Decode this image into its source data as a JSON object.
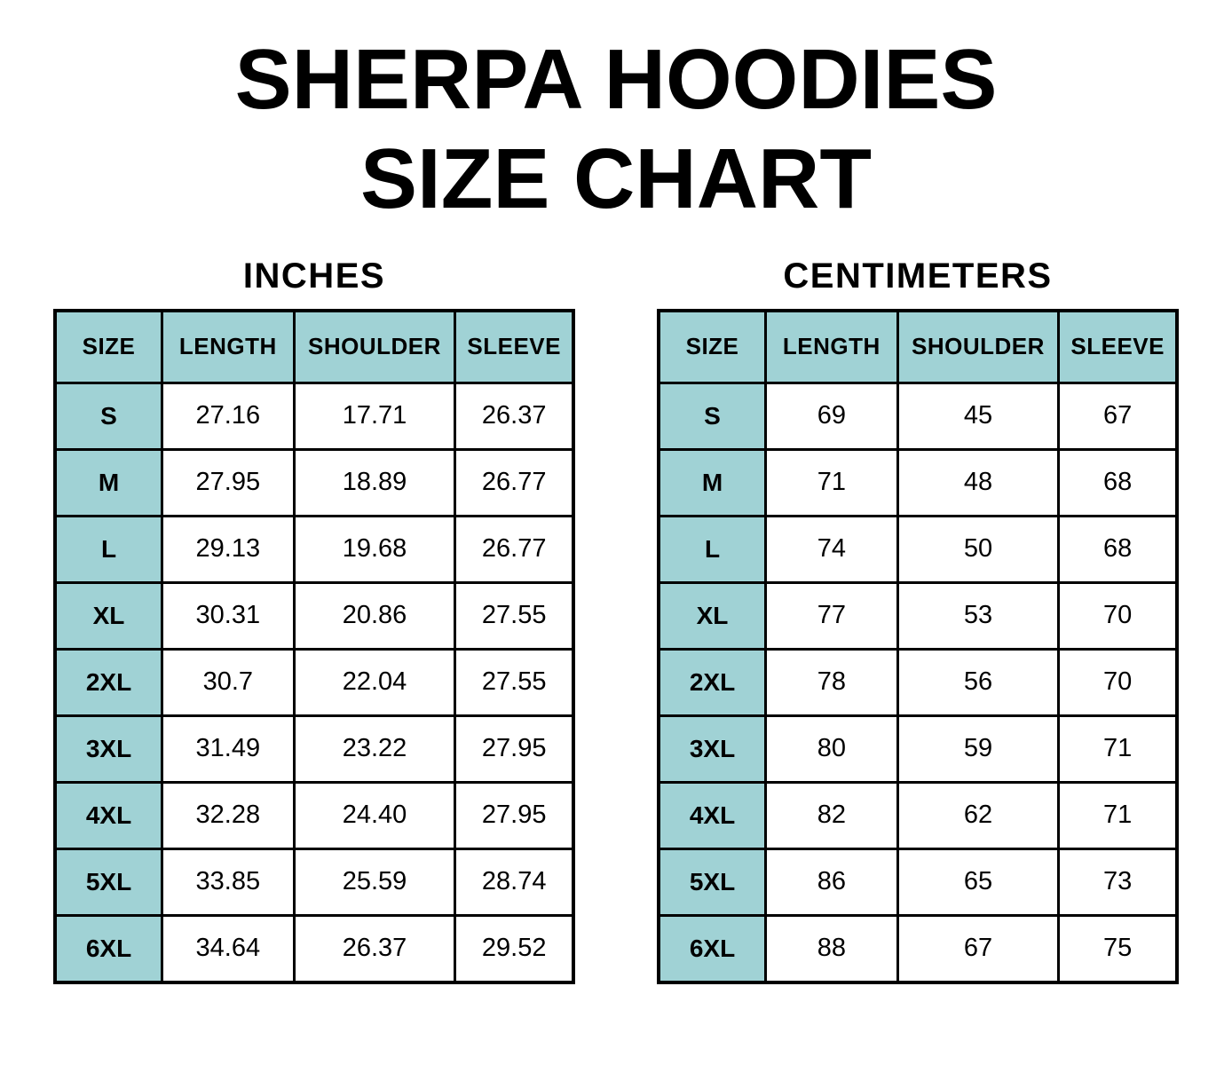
{
  "page": {
    "title_line1": "SHERPA HOODIES",
    "title_line2": "SIZE CHART"
  },
  "colors": {
    "accent_teal": "#a0d2d5",
    "border": "#000000",
    "text": "#000000",
    "background": "#ffffff"
  },
  "chart_data": [
    {
      "type": "table",
      "title": "INCHES",
      "columns": [
        "SIZE",
        "LENGTH",
        "SHOULDER",
        "SLEEVE"
      ],
      "rows": [
        [
          "S",
          "27.16",
          "17.71",
          "26.37"
        ],
        [
          "M",
          "27.95",
          "18.89",
          "26.77"
        ],
        [
          "L",
          "29.13",
          "19.68",
          "26.77"
        ],
        [
          "XL",
          "30.31",
          "20.86",
          "27.55"
        ],
        [
          "2XL",
          "30.7",
          "22.04",
          "27.55"
        ],
        [
          "3XL",
          "31.49",
          "23.22",
          "27.95"
        ],
        [
          "4XL",
          "32.28",
          "24.40",
          "27.95"
        ],
        [
          "5XL",
          "33.85",
          "25.59",
          "28.74"
        ],
        [
          "6XL",
          "34.64",
          "26.37",
          "29.52"
        ]
      ]
    },
    {
      "type": "table",
      "title": "CENTIMETERS",
      "columns": [
        "SIZE",
        "LENGTH",
        "SHOULDER",
        "SLEEVE"
      ],
      "rows": [
        [
          "S",
          "69",
          "45",
          "67"
        ],
        [
          "M",
          "71",
          "48",
          "68"
        ],
        [
          "L",
          "74",
          "50",
          "68"
        ],
        [
          "XL",
          "77",
          "53",
          "70"
        ],
        [
          "2XL",
          "78",
          "56",
          "70"
        ],
        [
          "3XL",
          "80",
          "59",
          "71"
        ],
        [
          "4XL",
          "82",
          "62",
          "71"
        ],
        [
          "5XL",
          "86",
          "65",
          "73"
        ],
        [
          "6XL",
          "88",
          "67",
          "75"
        ]
      ]
    }
  ]
}
